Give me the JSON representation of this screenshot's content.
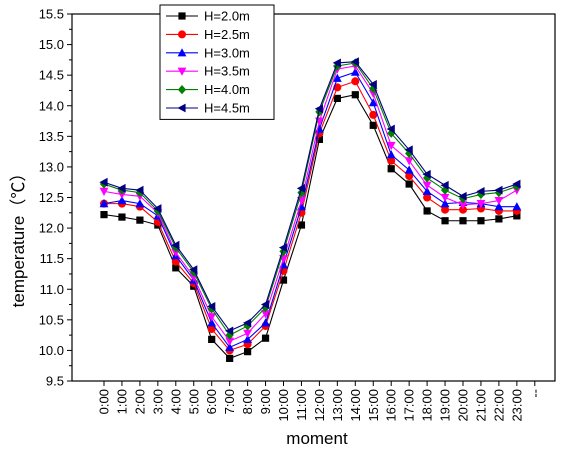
{
  "chart_data": {
    "type": "line",
    "title": "",
    "xlabel": "moment",
    "ylabel": "temperature（℃）",
    "categories": [
      "0:00",
      "1:00",
      "2:00",
      "3:00",
      "4:00",
      "5:00",
      "6:00",
      "7:00",
      "8:00",
      "9:00",
      "10:00",
      "11:00",
      "12:00",
      "13:00",
      "14:00",
      "15:00",
      "16:00",
      "17:00",
      "18:00",
      "19:00",
      "20:00",
      "21:00",
      "22:00",
      "23:00"
    ],
    "extra_tick_label": "--",
    "ylim": [
      9.5,
      15.5
    ],
    "yticks": [
      "9.5",
      "10.0",
      "10.5",
      "11.0",
      "11.5",
      "12.0",
      "12.5",
      "13.0",
      "13.5",
      "14.0",
      "14.5",
      "15.0",
      "15.5"
    ],
    "grid": false,
    "legend_position": "top-left",
    "series": [
      {
        "name": "H=2.0m",
        "color": "#000000",
        "marker": "square",
        "values": [
          12.22,
          12.18,
          12.13,
          12.05,
          11.35,
          11.05,
          10.18,
          9.87,
          9.98,
          10.2,
          11.15,
          12.05,
          13.45,
          14.12,
          14.18,
          13.68,
          12.97,
          12.72,
          12.28,
          12.12,
          12.12,
          12.12,
          12.15,
          12.2
        ]
      },
      {
        "name": "H=2.5m",
        "color": "#ff0000",
        "marker": "circle",
        "values": [
          12.4,
          12.4,
          12.35,
          12.1,
          11.45,
          11.1,
          10.35,
          10.0,
          10.1,
          10.4,
          11.3,
          12.25,
          13.55,
          14.3,
          14.4,
          13.85,
          13.1,
          12.85,
          12.5,
          12.3,
          12.3,
          12.32,
          12.28,
          12.28
        ]
      },
      {
        "name": "H=3.0m",
        "color": "#0000ff",
        "marker": "triangle-up",
        "values": [
          12.4,
          12.45,
          12.4,
          12.2,
          11.55,
          11.15,
          10.45,
          10.05,
          10.18,
          10.45,
          11.4,
          12.35,
          13.62,
          14.45,
          14.55,
          14.05,
          13.2,
          12.95,
          12.6,
          12.4,
          12.42,
          12.4,
          12.35,
          12.35
        ]
      },
      {
        "name": "H=3.5m",
        "color": "#ff00ff",
        "marker": "triangle-down",
        "values": [
          12.6,
          12.55,
          12.52,
          12.25,
          11.6,
          11.2,
          10.55,
          10.15,
          10.28,
          10.6,
          11.5,
          12.45,
          13.75,
          14.6,
          14.65,
          14.2,
          13.35,
          13.1,
          12.7,
          12.5,
          12.38,
          12.4,
          12.45,
          12.62
        ]
      },
      {
        "name": "H=4.0m",
        "color": "#008000",
        "marker": "diamond",
        "values": [
          12.72,
          12.62,
          12.58,
          12.28,
          11.68,
          11.28,
          10.68,
          10.25,
          10.4,
          10.7,
          11.62,
          12.58,
          13.9,
          14.65,
          14.7,
          14.28,
          13.55,
          13.22,
          12.82,
          12.62,
          12.48,
          12.55,
          12.58,
          12.68
        ]
      },
      {
        "name": "H=4.5m",
        "color": "#000080",
        "marker": "triangle-left",
        "values": [
          12.75,
          12.65,
          12.62,
          12.32,
          11.72,
          11.32,
          10.72,
          10.32,
          10.45,
          10.75,
          11.68,
          12.65,
          13.95,
          14.7,
          14.72,
          14.35,
          13.62,
          13.28,
          12.88,
          12.7,
          12.52,
          12.6,
          12.62,
          12.72
        ]
      }
    ]
  }
}
